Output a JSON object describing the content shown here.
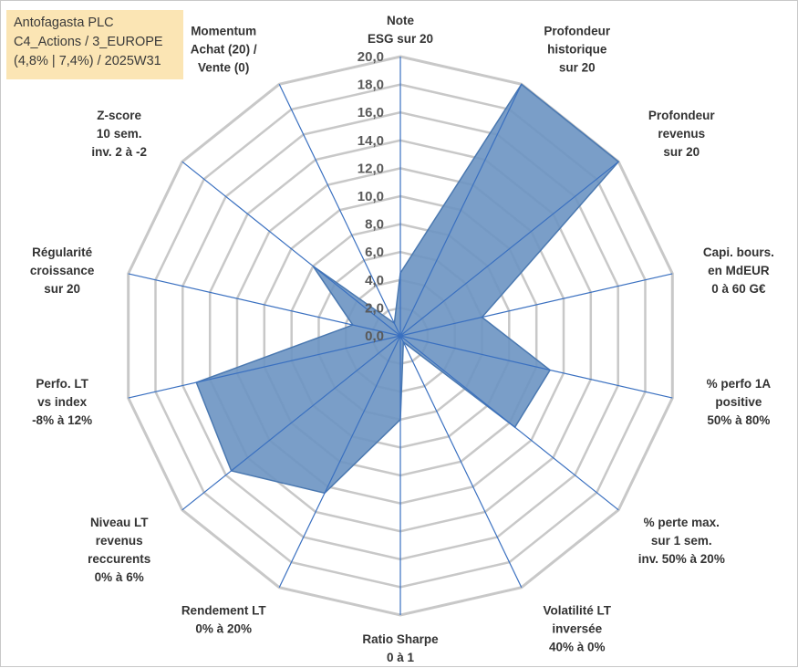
{
  "header": {
    "line1": "Antofagasta PLC",
    "line2": "C4_Actions / 3_EUROPE",
    "line3": "(4,8% | 7,4%) / 2025W31"
  },
  "colors": {
    "fill": "#6b93c2",
    "fill_opacity": 0.9,
    "outline": "#4a78b0",
    "spoke": "#3a70c0",
    "ring": "#c8c8c8",
    "header_bg": "#fbe5b4"
  },
  "chart_data": {
    "type": "radar",
    "r_min": 0,
    "r_max": 20,
    "r_step": 2,
    "tick_labels": [
      "0,0",
      "2,0",
      "4,0",
      "6,0",
      "8,0",
      "10,0",
      "12,0",
      "14,0",
      "16,0",
      "18,0",
      "20,0"
    ],
    "gridlines": true,
    "axes": [
      {
        "label": [
          "Note",
          "ESG sur 20"
        ],
        "value": 4.5
      },
      {
        "label": [
          "Profondeur",
          "historique",
          "sur 20"
        ],
        "value": 20
      },
      {
        "label": [
          "Profondeur",
          "revenus",
          "sur 20"
        ],
        "value": 20
      },
      {
        "label": [
          "Capi. bours.",
          "en MdEUR",
          "0 à 60 G€"
        ],
        "value": 6
      },
      {
        "label": [
          "% perfo 1A",
          "positive",
          "50% à 80%"
        ],
        "value": 11
      },
      {
        "label": [
          "% perte max.",
          "sur 1 sem.",
          "inv. 50% à 20%"
        ],
        "value": 10.5
      },
      {
        "label": [
          "Volatilité LT",
          "inversée",
          "40% à 0%"
        ],
        "value": 0.5
      },
      {
        "label": [
          "Ratio Sharpe",
          "0 à 1"
        ],
        "value": 6
      },
      {
        "label": [
          "Rendement LT",
          "0% à 20%"
        ],
        "value": 12.5
      },
      {
        "label": [
          "Niveau LT",
          "revenus",
          "reccurents",
          "0% à 6%"
        ],
        "value": 15.5
      },
      {
        "label": [
          "Perfo. LT",
          "vs index",
          "-8% à 12%"
        ],
        "value": 15
      },
      {
        "label": [
          "Régularité",
          "croissance",
          "sur 20"
        ],
        "value": 3.5
      },
      {
        "label": [
          "Z-score",
          "10 sem.",
          "inv. 2 à -2"
        ],
        "value": 8
      },
      {
        "label": [
          "Momentum",
          "Achat (20) /",
          "Vente (0)"
        ],
        "value": 1
      }
    ]
  }
}
